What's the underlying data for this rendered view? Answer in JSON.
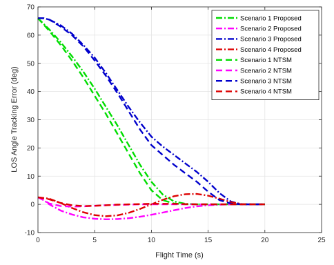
{
  "chart_data": {
    "type": "line",
    "title": "",
    "xlabel": "Flight Time (s)",
    "ylabel": "LOS Angle Tracking Error (deg)",
    "xlim": [
      0,
      25
    ],
    "ylim": [
      -10,
      70
    ],
    "xticks": [
      0,
      5,
      10,
      15,
      20,
      25
    ],
    "yticks": [
      -10,
      0,
      10,
      20,
      30,
      40,
      50,
      60,
      70
    ],
    "grid": true,
    "legend_position": "top-right",
    "series": [
      {
        "name": "Scenario 1 Proposed",
        "color": "#00dd00",
        "style": "dashdot",
        "x": [
          0,
          1,
          2,
          3,
          4,
          5,
          6,
          7,
          8,
          9,
          10,
          11,
          12,
          13,
          14,
          15,
          16,
          17,
          18,
          19,
          20
        ],
        "y": [
          66,
          62,
          57.5,
          52.5,
          47,
          41,
          34.5,
          28,
          21,
          14,
          8,
          3.5,
          1,
          0.2,
          0,
          0,
          0,
          0,
          0,
          0,
          0
        ]
      },
      {
        "name": "Scenario 2 Proposed",
        "color": "#ff00ff",
        "style": "dashdot",
        "x": [
          0,
          0.5,
          1,
          2,
          3,
          4,
          5,
          6,
          7,
          8,
          9,
          10,
          11,
          12,
          13,
          14,
          15,
          16,
          17,
          18,
          19,
          20
        ],
        "y": [
          2.5,
          1.5,
          0,
          -2.2,
          -3.6,
          -4.6,
          -5.1,
          -5.3,
          -5.2,
          -4.9,
          -4.4,
          -3.7,
          -2.9,
          -2.1,
          -1.3,
          -0.7,
          -0.3,
          -0.1,
          0,
          0,
          0,
          0
        ]
      },
      {
        "name": "Scenario 3 Proposed",
        "color": "#0000cc",
        "style": "dashdot",
        "x": [
          0,
          0.5,
          1,
          2,
          3,
          4,
          5,
          6,
          7,
          8,
          9,
          10,
          11,
          12,
          13,
          14,
          15,
          16,
          17,
          18,
          19,
          20
        ],
        "y": [
          66,
          66,
          65.5,
          63.5,
          60.5,
          56.5,
          52,
          46.5,
          40.5,
          34.5,
          29,
          24,
          20.5,
          17.5,
          14.5,
          11.5,
          8,
          4,
          1,
          0,
          0,
          0
        ]
      },
      {
        "name": "Scenario 4 Proposed",
        "color": "#dd0000",
        "style": "dashdot",
        "x": [
          0,
          1,
          2,
          3,
          4,
          5,
          6,
          7,
          8,
          9,
          10,
          11,
          12,
          13,
          14,
          15,
          16,
          17,
          18,
          19,
          20
        ],
        "y": [
          2.5,
          2,
          0.5,
          -1.3,
          -2.8,
          -3.8,
          -4.2,
          -3.9,
          -3,
          -1.6,
          0,
          1.6,
          2.9,
          3.6,
          3.7,
          3.1,
          2,
          0.8,
          0.1,
          0,
          0
        ]
      },
      {
        "name": "Scenario 1 NTSM",
        "color": "#00dd00",
        "style": "dashed",
        "x": [
          0,
          1,
          2,
          3,
          4,
          5,
          6,
          7,
          8,
          9,
          10,
          11,
          12,
          13,
          14,
          15,
          16,
          17,
          18,
          19,
          20
        ],
        "y": [
          66,
          61.5,
          56.5,
          51,
          45,
          38.5,
          32,
          25,
          18,
          11,
          5,
          1.5,
          0.3,
          0,
          0,
          0,
          0,
          0,
          0,
          0,
          0
        ]
      },
      {
        "name": "Scenario 2 NTSM",
        "color": "#ff00ff",
        "style": "dashed",
        "x": [
          0,
          0.5,
          1,
          2,
          3,
          4,
          5,
          6,
          7,
          8,
          9,
          10,
          11,
          12,
          13,
          14,
          15,
          16,
          17,
          18,
          19,
          20
        ],
        "y": [
          2.5,
          1.5,
          0.3,
          -0.6,
          -0.8,
          -0.7,
          -0.5,
          -0.3,
          -0.2,
          -0.1,
          0,
          0,
          0,
          0,
          0,
          0,
          0,
          0,
          0,
          0,
          0,
          0
        ]
      },
      {
        "name": "Scenario 3 NTSM",
        "color": "#0000cc",
        "style": "dashed",
        "x": [
          0,
          0.5,
          1,
          2,
          3,
          4,
          5,
          6,
          7,
          8,
          9,
          10,
          11,
          12,
          13,
          14,
          15,
          16,
          17,
          18,
          19,
          20
        ],
        "y": [
          66,
          66,
          65.5,
          63,
          60,
          56,
          51,
          45.5,
          39.5,
          33,
          26.5,
          21,
          17.5,
          14,
          11,
          8,
          4.5,
          1.5,
          0.3,
          0,
          0,
          0
        ]
      },
      {
        "name": "Scenario 4 NTSM",
        "color": "#dd0000",
        "style": "dashed",
        "x": [
          0,
          1,
          2,
          3,
          4,
          5,
          6,
          7,
          8,
          9,
          10,
          11,
          12,
          13,
          14,
          15,
          16,
          17,
          18,
          19,
          20
        ],
        "y": [
          2.5,
          1.8,
          0.5,
          -0.3,
          -0.6,
          -0.5,
          -0.3,
          -0.1,
          0,
          0.1,
          0.2,
          0.2,
          0.2,
          0.1,
          0,
          0,
          0,
          0,
          0,
          0,
          0
        ]
      }
    ]
  }
}
